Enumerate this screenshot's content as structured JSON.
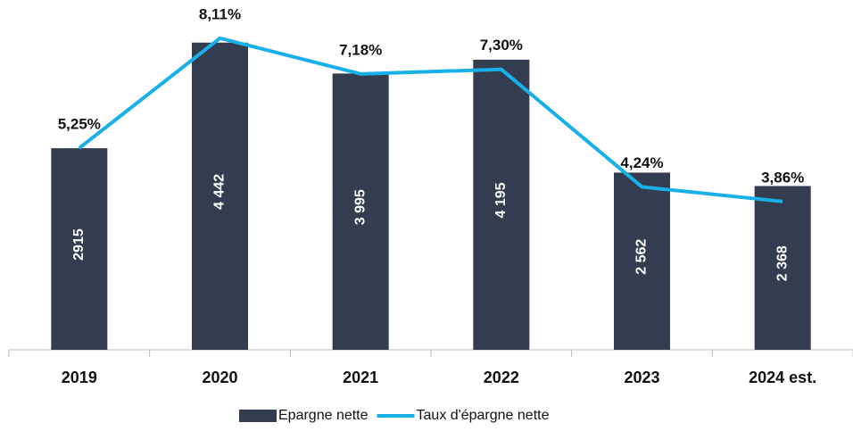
{
  "chart_data": {
    "type": "bar",
    "categories": [
      "2019",
      "2020",
      "2021",
      "2022",
      "2023",
      "2024 est."
    ],
    "series": [
      {
        "name": "Epargne nette",
        "type": "bar",
        "color": "#333d4f",
        "values": [
          2915,
          4442,
          3995,
          4195,
          2562,
          2368
        ],
        "value_labels": [
          "2915",
          "4 442",
          "3 995",
          "4 195",
          "2 562",
          "2 368"
        ]
      },
      {
        "name": "Taux d'épargne nette",
        "type": "line",
        "axis": "y2",
        "color": "#18b0e8",
        "values": [
          5.25,
          8.11,
          7.18,
          7.3,
          4.24,
          3.86
        ],
        "value_labels": [
          "5,25%",
          "8,11%",
          "7,18%",
          "7,30%",
          "4,24%",
          "3,86%"
        ]
      }
    ],
    "ylim": [
      0,
      5000
    ],
    "y2lim": [
      0,
      9
    ]
  }
}
